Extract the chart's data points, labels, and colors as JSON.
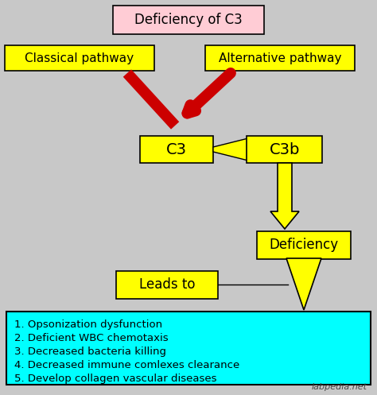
{
  "bg_color": "#c8c8c8",
  "title_text": "Deficiency of C3",
  "title_box_color": "#ffccd5",
  "yellow": "#ffff00",
  "cyan": "#00ffff",
  "red_arrow": "#cc0000",
  "text_color": "#000000",
  "classical_text": "Classical pathway",
  "alternative_text": "Alternative pathway",
  "c3_text": "C3",
  "c3b_text": "C3b",
  "deficiency_text": "Deficiency",
  "leads_to_text": "Leads to",
  "list_items": [
    "1. Opsonization dysfunction",
    "2. Deficient WBC chemotaxis",
    "3. Decreased bacteria killing",
    "4. Decreased immune comlexes clearance",
    "5. Develop collagen vascular diseases"
  ],
  "watermark": "labpedia.net"
}
